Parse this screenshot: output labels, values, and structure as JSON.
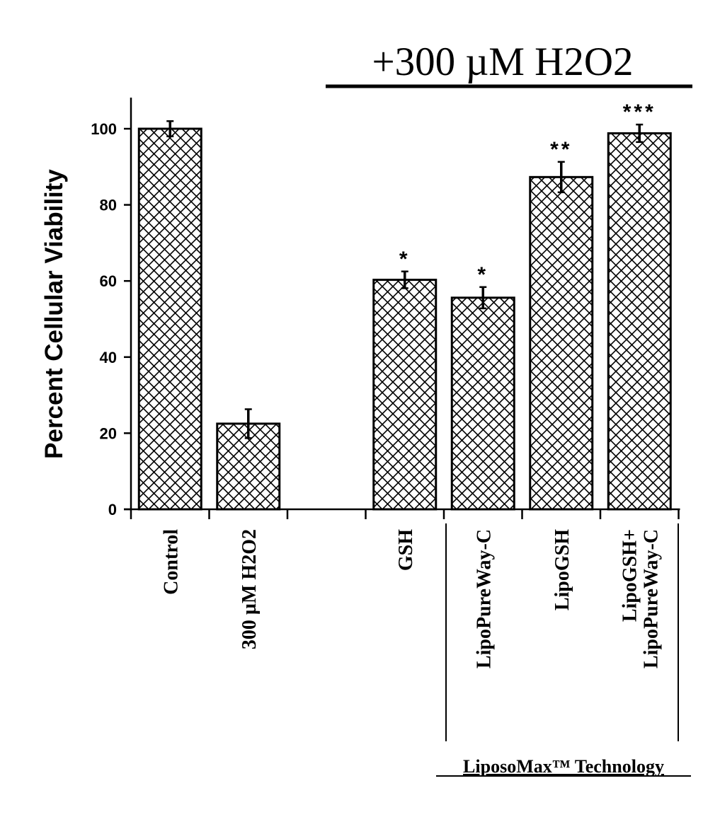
{
  "header": {
    "treatment_label": "+300 µM H2O2"
  },
  "footer": {
    "group_label": "LiposoMax™ Technology"
  },
  "chart_data": {
    "type": "bar",
    "title": "",
    "xlabel": "",
    "ylabel": "Percent Cellular Viability",
    "ylim": [
      0,
      108
    ],
    "yticks": [
      0,
      20,
      40,
      60,
      80,
      100
    ],
    "ytick_labels": [
      "0",
      "20",
      "40",
      "60",
      "80",
      "100"
    ],
    "grid": false,
    "legend": "none",
    "bar_fill": "crosshatch",
    "bar_color": "#000000",
    "categories": [
      {
        "label_lines": [
          "Control"
        ]
      },
      {
        "label_lines": [
          "300 µM H2O2"
        ]
      },
      {
        "label_lines": [],
        "empty": true
      },
      {
        "label_lines": [
          "GSH"
        ]
      },
      {
        "label_lines": [
          "LipoPureWay-C"
        ]
      },
      {
        "label_lines": [
          "LipoGSH"
        ]
      },
      {
        "label_lines": [
          "LipoGSH+",
          "LipoPureWay-C"
        ]
      }
    ],
    "values": [
      100,
      22.5,
      null,
      60.3,
      55.6,
      87.3,
      98.8
    ],
    "errors": [
      2.0,
      3.8,
      null,
      2.2,
      2.8,
      4.0,
      2.3
    ],
    "significance": [
      "",
      "",
      "",
      "*",
      "*",
      "**",
      "***"
    ]
  }
}
